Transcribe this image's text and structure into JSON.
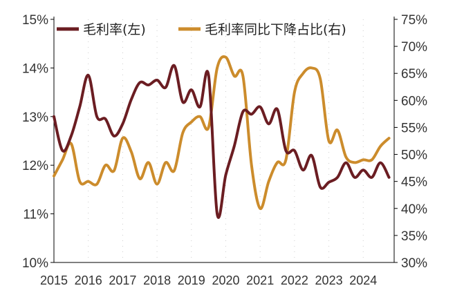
{
  "chart_data": {
    "type": "line",
    "title": "",
    "xlabel": "",
    "ylabel_left": "",
    "ylabel_right": "",
    "x_range": [
      2015,
      2024.9
    ],
    "x_ticks": [
      "2015",
      "2016",
      "2017",
      "2018",
      "2019",
      "2020",
      "2021",
      "2022",
      "2023",
      "2024"
    ],
    "y_left_range": [
      10,
      15
    ],
    "y_left_ticks": [
      "10%",
      "11%",
      "12%",
      "13%",
      "14%",
      "15%"
    ],
    "y_right_range": [
      30,
      75
    ],
    "y_right_ticks": [
      "30%",
      "35%",
      "40%",
      "45%",
      "50%",
      "55%",
      "60%",
      "65%",
      "70%",
      "75%"
    ],
    "grid": "dotted-vertical",
    "legend_position": "top",
    "colors": {
      "series_left": "#6b1d22",
      "series_right": "#cc8c2c",
      "axis": "#000000"
    },
    "series": [
      {
        "name": "毛利率(左)",
        "axis": "left",
        "x": [
          2015.0,
          2015.25,
          2015.5,
          2015.75,
          2016.0,
          2016.25,
          2016.5,
          2016.75,
          2017.0,
          2017.25,
          2017.5,
          2017.75,
          2018.0,
          2018.25,
          2018.5,
          2018.75,
          2019.0,
          2019.25,
          2019.5,
          2019.75,
          2020.0,
          2020.25,
          2020.5,
          2020.75,
          2021.0,
          2021.25,
          2021.5,
          2021.75,
          2022.0,
          2022.25,
          2022.5,
          2022.75,
          2023.0,
          2023.25,
          2023.5,
          2023.75,
          2024.0,
          2024.25,
          2024.5,
          2024.75
        ],
        "values": [
          13.0,
          12.3,
          12.6,
          13.2,
          13.85,
          13.0,
          12.95,
          12.6,
          12.85,
          13.35,
          13.7,
          13.65,
          13.75,
          13.6,
          14.05,
          13.3,
          13.55,
          13.2,
          13.85,
          11.0,
          11.8,
          12.4,
          13.1,
          13.05,
          13.2,
          12.85,
          13.15,
          12.3,
          12.3,
          11.9,
          12.2,
          11.55,
          11.65,
          11.75,
          12.05,
          11.75,
          11.9,
          11.75,
          12.05,
          11.75
        ]
      },
      {
        "name": "毛利率同比下降占比(右)",
        "axis": "right",
        "x": [
          2015.0,
          2015.25,
          2015.5,
          2015.75,
          2016.0,
          2016.25,
          2016.5,
          2016.75,
          2017.0,
          2017.25,
          2017.5,
          2017.75,
          2018.0,
          2018.25,
          2018.5,
          2018.75,
          2019.0,
          2019.25,
          2019.5,
          2019.75,
          2020.0,
          2020.25,
          2020.5,
          2020.75,
          2021.0,
          2021.25,
          2021.5,
          2021.75,
          2022.0,
          2022.25,
          2022.5,
          2022.75,
          2023.0,
          2023.25,
          2023.5,
          2023.75,
          2024.0,
          2024.25,
          2024.5,
          2024.75
        ],
        "values": [
          46.0,
          49.0,
          52.0,
          45.0,
          45.0,
          44.5,
          48.0,
          47.0,
          53.0,
          50.5,
          45.5,
          48.5,
          44.5,
          48.5,
          47.0,
          54.0,
          56.0,
          57.0,
          55.0,
          66.0,
          68.0,
          64.5,
          64.5,
          48.0,
          40.0,
          45.0,
          48.5,
          49.0,
          61.5,
          65.0,
          66.0,
          64.0,
          52.5,
          54.5,
          49.5,
          48.5,
          49.0,
          49.0,
          51.5,
          53.0
        ]
      }
    ]
  }
}
